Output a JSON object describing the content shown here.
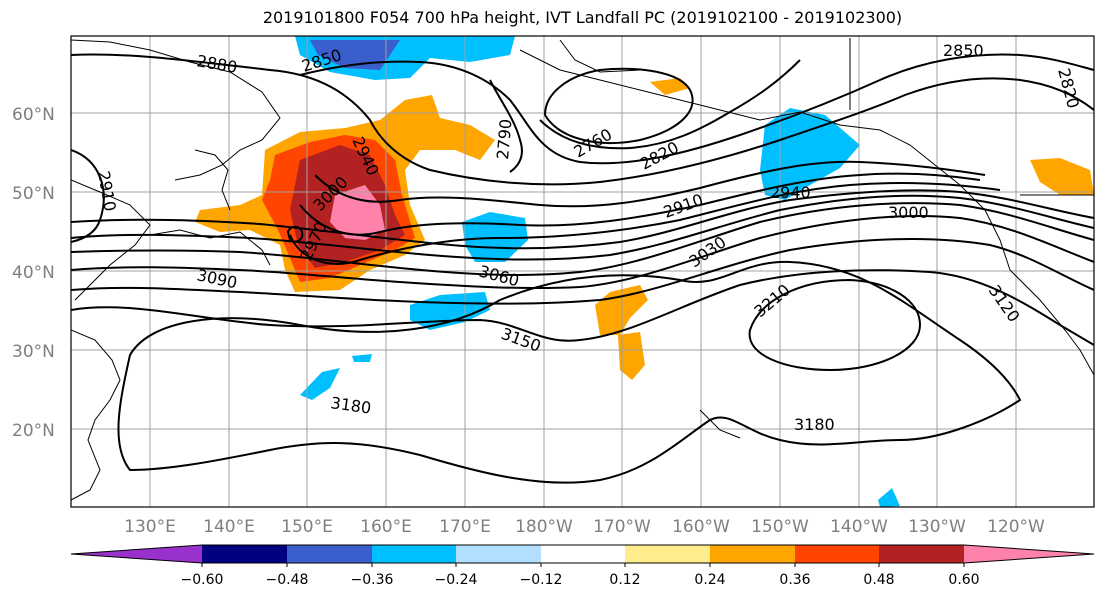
{
  "title": "2019101800 F054 700 hPa height, IVT Landfall PC (2019102100 - 2019102300)",
  "lat_labels": [
    "60°N",
    "50°N",
    "40°N",
    "30°N",
    "20°N"
  ],
  "lon_labels": [
    "130°E",
    "140°E",
    "150°E",
    "160°E",
    "170°E",
    "180°W",
    "170°W",
    "160°W",
    "150°W",
    "140°W",
    "130°W",
    "120°W"
  ],
  "contour_labels": [
    "2880",
    "2850",
    "2760",
    "2790",
    "2820",
    "2850",
    "2820",
    "2910",
    "2910",
    "2940",
    "2970",
    "3000",
    "2940",
    "3000",
    "3030",
    "3060",
    "3090",
    "3120",
    "3150",
    "3180",
    "3180",
    "3210"
  ],
  "colorbar": {
    "ticks": [
      "−0.60",
      "−0.48",
      "−0.36",
      "−0.24",
      "−0.12",
      "0.12",
      "0.24",
      "0.36",
      "0.48",
      "0.60"
    ],
    "colors": [
      "#9932cc",
      "#000080",
      "#3a5fcd",
      "#00bfff",
      "#b2dfff",
      "#ffffff",
      "#ffec8b",
      "#ffa500",
      "#ff4500",
      "#b22222",
      "#ff82ab"
    ]
  }
}
